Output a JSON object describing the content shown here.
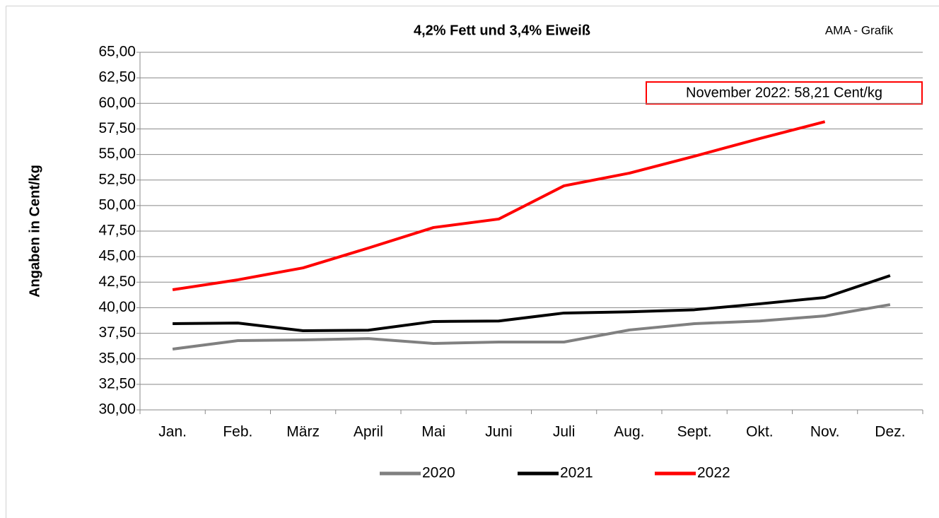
{
  "chart_data": {
    "type": "line",
    "title": "4,2% Fett und 3,4% Eiweiß",
    "source": "AMA - Grafik",
    "annotation": "November 2022: 58,21 Cent/kg",
    "y_label": "Angaben in Cent/kg",
    "categories": [
      "Jan.",
      "Feb.",
      "März",
      "April",
      "Mai",
      "Juni",
      "Juli",
      "Aug.",
      "Sept.",
      "Okt.",
      "Nov.",
      "Dez."
    ],
    "series": [
      {
        "name": "2020",
        "color": "#808080",
        "values": [
          35.95,
          36.78,
          36.85,
          36.98,
          36.5,
          36.64,
          36.64,
          37.82,
          38.44,
          38.7,
          39.2,
          40.3
        ]
      },
      {
        "name": "2021",
        "color": "#000000",
        "values": [
          38.44,
          38.5,
          37.75,
          37.8,
          38.65,
          38.7,
          39.48,
          39.6,
          39.8,
          40.38,
          41.0,
          43.14
        ]
      },
      {
        "name": "2022",
        "color": "#ff0000",
        "values": [
          41.76,
          42.73,
          43.9,
          45.84,
          47.85,
          48.68,
          51.93,
          53.17,
          54.83,
          56.56,
          58.21,
          null
        ]
      }
    ],
    "ylim": [
      30,
      65
    ],
    "yticks": [
      {
        "value": 30,
        "label": "30,00"
      },
      {
        "value": 32.5,
        "label": "32,50"
      },
      {
        "value": 35,
        "label": "35,00"
      },
      {
        "value": 37.5,
        "label": "37,50"
      },
      {
        "value": 40,
        "label": "40,00"
      },
      {
        "value": 42.5,
        "label": "42,50"
      },
      {
        "value": 45,
        "label": "45,00"
      },
      {
        "value": 47.5,
        "label": "47,50"
      },
      {
        "value": 50,
        "label": "50,00"
      },
      {
        "value": 52.5,
        "label": "52,50"
      },
      {
        "value": 55,
        "label": "55,00"
      },
      {
        "value": 57.5,
        "label": "57,50"
      },
      {
        "value": 60,
        "label": "60,00"
      },
      {
        "value": 62.5,
        "label": "62,50"
      },
      {
        "value": 65,
        "label": "65,00"
      }
    ],
    "grid": true,
    "legend": "bottom"
  }
}
